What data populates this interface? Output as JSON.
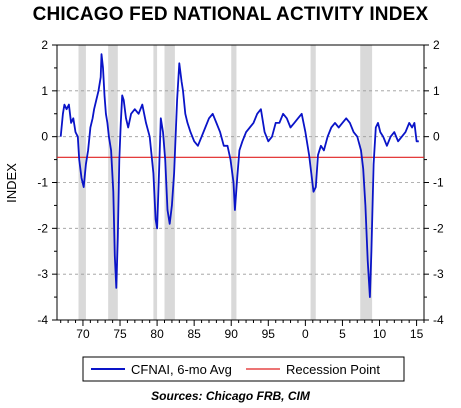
{
  "chart_data": {
    "type": "line",
    "title": "CHICAGO FED NATIONAL ACTIVITY INDEX",
    "ylabel": "INDEX",
    "xlabel": "",
    "source": "Sources:  Chicago FRB, CIM",
    "xlim": [
      1967,
      2016.5
    ],
    "ylim": [
      -4,
      2
    ],
    "x_ticks": [
      70,
      75,
      80,
      85,
      90,
      95,
      0,
      5,
      10,
      15
    ],
    "y_ticks": [
      -4,
      -3,
      -2,
      -1,
      0,
      1,
      2
    ],
    "recession_point": -0.45,
    "recessions": [
      [
        1969.9,
        1970.9
      ],
      [
        1973.9,
        1975.2
      ],
      [
        1980.0,
        1980.5
      ],
      [
        1981.5,
        1982.9
      ],
      [
        1990.5,
        1991.2
      ],
      [
        2001.2,
        2001.9
      ],
      [
        2007.9,
        2009.5
      ]
    ],
    "grid": "horizontal dashed",
    "legend_position": "bottom",
    "colors": {
      "series": "#0a14c8",
      "recession_line": "#e02020",
      "recession_band": "#d9d9d9"
    },
    "series": [
      {
        "name": "CFNAI, 6-mo Avg",
        "x": [
          1967.5,
          1967.8,
          1968.0,
          1968.3,
          1968.6,
          1968.9,
          1969.2,
          1969.5,
          1969.8,
          1970.0,
          1970.3,
          1970.6,
          1970.9,
          1971.2,
          1971.5,
          1971.8,
          1972.0,
          1972.3,
          1972.6,
          1972.9,
          1973.0,
          1973.2,
          1973.4,
          1973.6,
          1973.8,
          1974.0,
          1974.3,
          1974.6,
          1974.8,
          1975.0,
          1975.2,
          1975.4,
          1975.6,
          1975.8,
          1976.0,
          1976.3,
          1976.6,
          1977.0,
          1977.5,
          1978.0,
          1978.5,
          1979.0,
          1979.5,
          1980.0,
          1980.3,
          1980.5,
          1980.8,
          1981.0,
          1981.3,
          1981.6,
          1981.9,
          1982.2,
          1982.5,
          1982.8,
          1983.0,
          1983.2,
          1983.5,
          1983.8,
          1984.0,
          1984.3,
          1984.6,
          1985.0,
          1985.5,
          1986.0,
          1986.5,
          1987.0,
          1987.5,
          1988.0,
          1988.5,
          1989.0,
          1989.5,
          1990.0,
          1990.4,
          1990.8,
          1991.0,
          1991.3,
          1991.6,
          1992.0,
          1992.5,
          1993.0,
          1993.5,
          1994.0,
          1994.5,
          1995.0,
          1995.5,
          1996.0,
          1996.5,
          1997.0,
          1997.5,
          1998.0,
          1998.5,
          1999.0,
          1999.5,
          2000.0,
          2000.5,
          2001.0,
          2001.3,
          2001.6,
          2001.9,
          2002.2,
          2002.6,
          2003.0,
          2003.5,
          2004.0,
          2004.5,
          2005.0,
          2005.5,
          2006.0,
          2006.5,
          2007.0,
          2007.5,
          2008.0,
          2008.3,
          2008.6,
          2008.9,
          2009.2,
          2009.4,
          2009.7,
          2010.0,
          2010.3,
          2010.6,
          2011.0,
          2011.5,
          2012.0,
          2012.5,
          2013.0,
          2013.5,
          2014.0,
          2014.5,
          2014.9,
          2015.2,
          2015.5,
          2015.8
        ],
        "values": [
          0.0,
          0.5,
          0.7,
          0.6,
          0.7,
          0.3,
          0.4,
          0.1,
          0.0,
          -0.5,
          -0.9,
          -1.1,
          -0.6,
          -0.3,
          0.2,
          0.4,
          0.6,
          0.8,
          1.0,
          1.3,
          1.8,
          1.5,
          0.9,
          0.5,
          0.3,
          0.0,
          -0.3,
          -1.2,
          -2.6,
          -3.3,
          -2.2,
          -0.5,
          0.3,
          0.9,
          0.8,
          0.4,
          0.2,
          0.5,
          0.6,
          0.5,
          0.7,
          0.3,
          0.0,
          -0.8,
          -1.8,
          -2.0,
          -0.6,
          0.4,
          0.1,
          -0.5,
          -1.6,
          -1.9,
          -1.5,
          -0.8,
          0.0,
          0.8,
          1.6,
          1.2,
          1.0,
          0.5,
          0.3,
          0.1,
          -0.1,
          -0.2,
          0.0,
          0.2,
          0.4,
          0.5,
          0.3,
          0.1,
          -0.2,
          -0.2,
          -0.5,
          -1.0,
          -1.6,
          -0.9,
          -0.3,
          -0.1,
          0.1,
          0.2,
          0.3,
          0.5,
          0.6,
          0.1,
          -0.1,
          0.0,
          0.3,
          0.3,
          0.5,
          0.4,
          0.2,
          0.3,
          0.4,
          0.5,
          0.1,
          -0.4,
          -0.8,
          -1.2,
          -1.1,
          -0.4,
          -0.2,
          -0.3,
          0.0,
          0.2,
          0.3,
          0.2,
          0.3,
          0.4,
          0.3,
          0.1,
          0.0,
          -0.3,
          -0.7,
          -1.5,
          -2.7,
          -3.5,
          -2.5,
          -0.6,
          0.2,
          0.3,
          0.1,
          0.0,
          -0.2,
          0.0,
          0.1,
          -0.1,
          0.0,
          0.1,
          0.3,
          0.2,
          0.3,
          -0.1,
          -0.1
        ]
      },
      {
        "name": "Recession Point"
      }
    ]
  }
}
